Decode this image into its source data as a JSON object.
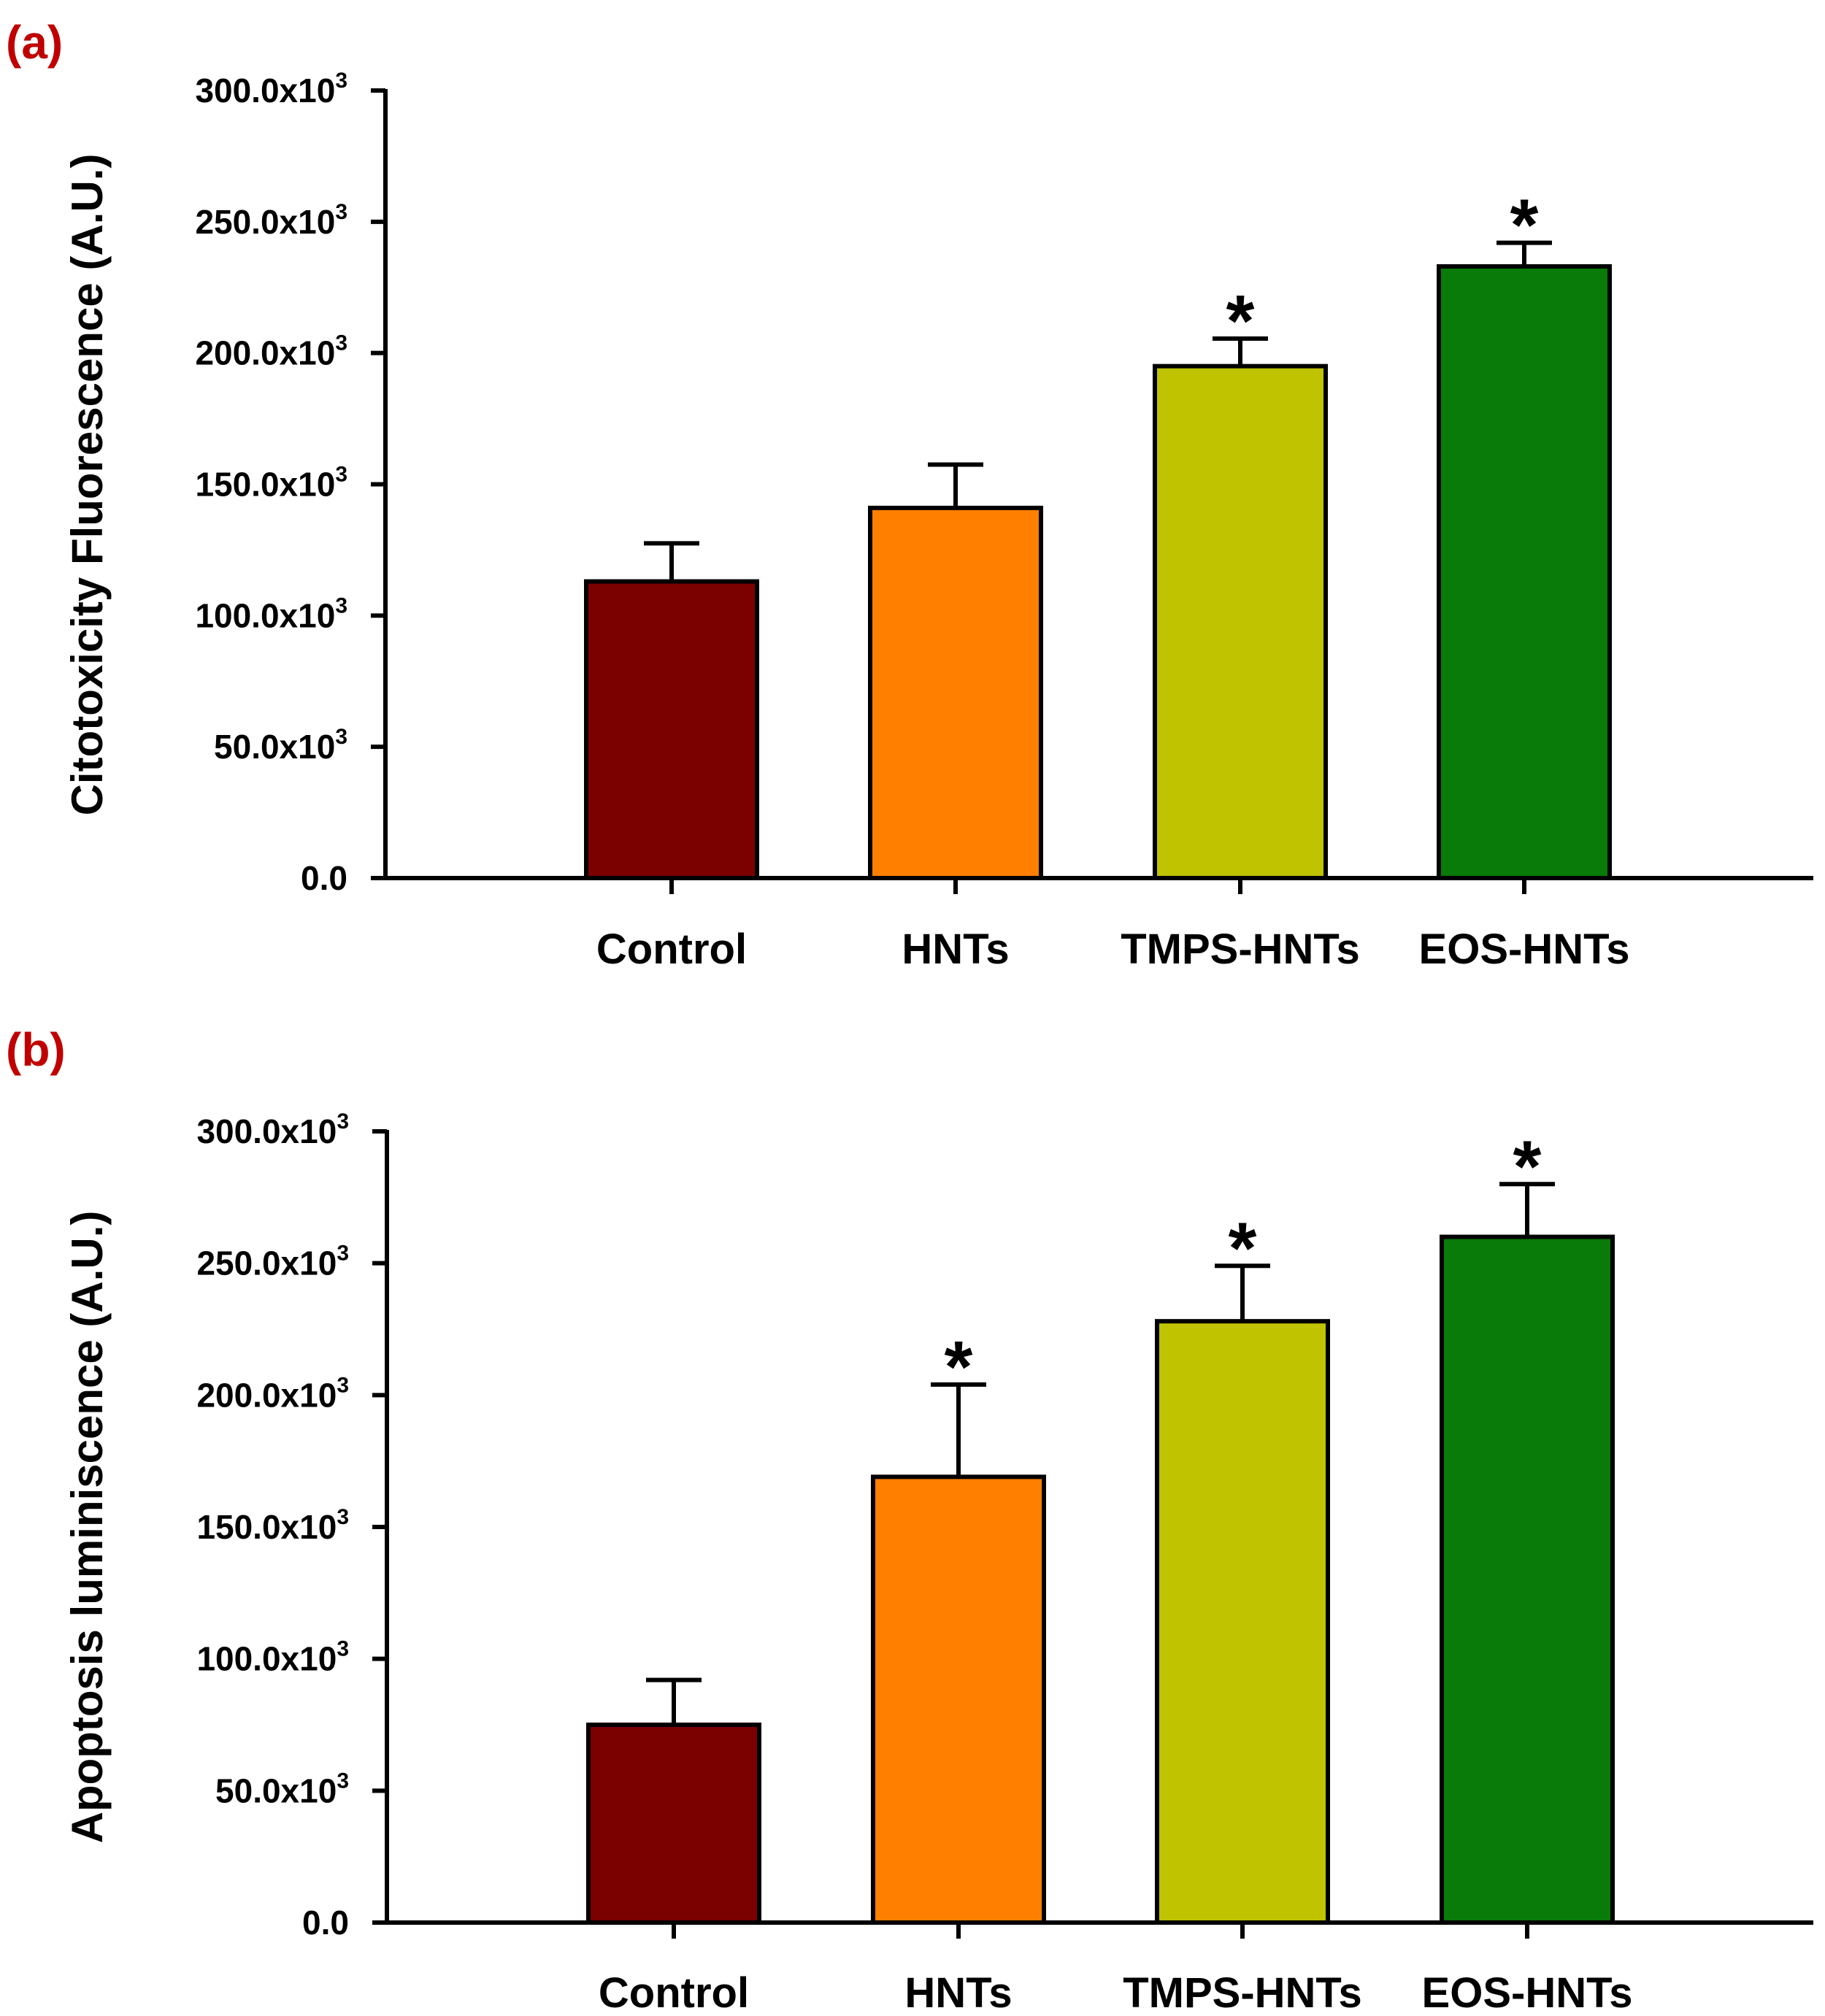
{
  "chart_data": [
    {
      "type": "bar",
      "panel_label": "(a)",
      "title": "",
      "xlabel": "",
      "ylabel": "Citotoxicity Fluorescence (A.U.)",
      "ylim": [
        0,
        300000
      ],
      "yticks": [
        {
          "value": 0,
          "base": "0.0",
          "exp": ""
        },
        {
          "value": 50000,
          "base": "50.0x10",
          "exp": "3"
        },
        {
          "value": 100000,
          "base": "100.0x10",
          "exp": "3"
        },
        {
          "value": 150000,
          "base": "150.0x10",
          "exp": "3"
        },
        {
          "value": 200000,
          "base": "200.0x10",
          "exp": "3"
        },
        {
          "value": 250000,
          "base": "250.0x10",
          "exp": "3"
        },
        {
          "value": 300000,
          "base": "300.0x10",
          "exp": "3"
        }
      ],
      "categories": [
        "Control",
        "HNTs",
        "TMPS-HNTs",
        "EOS-HNTs"
      ],
      "values": [
        113000,
        141000,
        195000,
        233000
      ],
      "errors": [
        14500,
        16500,
        10500,
        9000
      ],
      "significance": [
        "",
        "",
        "*",
        "*"
      ],
      "colors": [
        "#7b0000",
        "#ff8000",
        "#bfc300",
        "#087b08"
      ],
      "grid": false
    },
    {
      "type": "bar",
      "panel_label": "(b)",
      "title": "",
      "xlabel": "",
      "ylabel": "Apoptosis luminiscence (A.U.)",
      "ylim": [
        0,
        300000
      ],
      "yticks": [
        {
          "value": 0,
          "base": "0.0",
          "exp": ""
        },
        {
          "value": 50000,
          "base": "50.0x10",
          "exp": "3"
        },
        {
          "value": 100000,
          "base": "100.0x10",
          "exp": "3"
        },
        {
          "value": 150000,
          "base": "150.0x10",
          "exp": "3"
        },
        {
          "value": 200000,
          "base": "200.0x10",
          "exp": "3"
        },
        {
          "value": 250000,
          "base": "250.0x10",
          "exp": "3"
        },
        {
          "value": 300000,
          "base": "300.0x10",
          "exp": "3"
        }
      ],
      "categories": [
        "Control",
        "HNTs",
        "TMPS-HNTs",
        "EOS-HNTs"
      ],
      "values": [
        75000,
        169000,
        228000,
        260000
      ],
      "errors": [
        17000,
        35000,
        21000,
        20000
      ],
      "significance": [
        "",
        "*",
        "*",
        "*"
      ],
      "colors": [
        "#7b0000",
        "#ff8000",
        "#bfc300",
        "#087b08"
      ],
      "grid": false
    }
  ],
  "style": {
    "panel_label_color": "#c00000",
    "axis_color": "#000000"
  }
}
